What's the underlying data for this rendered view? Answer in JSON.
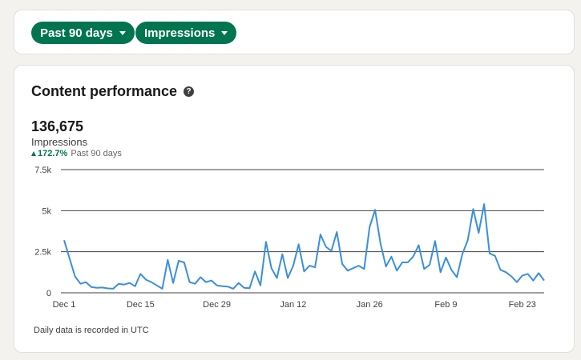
{
  "filters": {
    "range_label": "Past 90 days",
    "metric_label": "Impressions"
  },
  "card": {
    "title": "Content performance",
    "help_icon": "question-circle-icon",
    "total": "136,675",
    "metric": "Impressions",
    "change": "172.7%",
    "change_period": "Past 90 days",
    "footnote": "Daily data is recorded in UTC"
  },
  "colors": {
    "accent": "#01754f",
    "line": "#3a8fdd",
    "grid": "#404040"
  },
  "chart_data": {
    "type": "line",
    "title": "",
    "xlabel": "",
    "ylabel": "",
    "ylim": [
      0,
      7500
    ],
    "yticks": [
      0,
      2500,
      5000,
      7500
    ],
    "ytick_labels": [
      "0",
      "2.5k",
      "5k",
      "7.5k"
    ],
    "xtick_labels": [
      "Dec 1",
      "Dec 15",
      "Dec 29",
      "Jan 12",
      "Jan 26",
      "Feb 9",
      "Feb 23"
    ],
    "xtick_index": [
      0,
      14,
      28,
      42,
      56,
      70,
      84
    ],
    "grid": "horizontal",
    "series": [
      {
        "values": [
          3200,
          2100,
          1000,
          550,
          650,
          350,
          300,
          320,
          270,
          250,
          550,
          500,
          600,
          400,
          1150,
          800,
          650,
          450,
          250,
          2000,
          600,
          1950,
          1850,
          650,
          550,
          950,
          650,
          750,
          450,
          400,
          380,
          250,
          600,
          300,
          280,
          1300,
          450,
          3100,
          1500,
          900,
          2350,
          900,
          1650,
          2950,
          1300,
          1650,
          1550,
          3550,
          2800,
          2550,
          3700,
          1750,
          1350,
          1500,
          1650,
          1450,
          4000,
          5050,
          3000,
          1600,
          2200,
          1350,
          1850,
          1850,
          2200,
          2900,
          1450,
          1700,
          3150,
          1250,
          2150,
          1400,
          950,
          2350,
          3200,
          5100,
          3650,
          5400,
          2400,
          2250,
          1400,
          1250,
          1000,
          650,
          1050,
          1150,
          750,
          1200,
          750
        ]
      }
    ]
  }
}
